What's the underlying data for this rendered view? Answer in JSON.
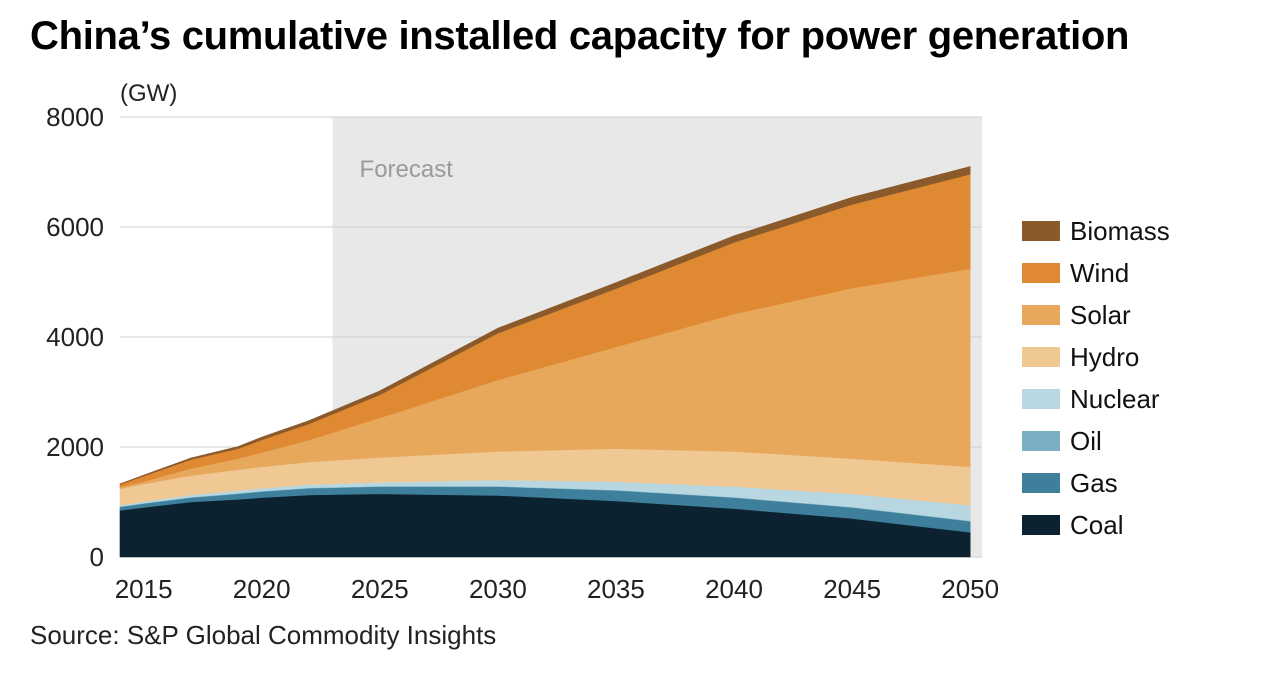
{
  "title": "China’s cumulative installed capacity for power generation",
  "source": "Source: S&P Global Commodity Insights",
  "chart_data": {
    "type": "area",
    "stacked": true,
    "title": "China’s cumulative installed capacity for power generation",
    "ylabel": "(GW)",
    "xlabel": "",
    "xlim": [
      2014,
      2050.5
    ],
    "ylim": [
      0,
      8000
    ],
    "yticks": [
      0,
      2000,
      4000,
      6000,
      8000
    ],
    "xticks": [
      2015,
      2020,
      2025,
      2030,
      2035,
      2040,
      2045,
      2050
    ],
    "grid": "horizontal",
    "legend_position": "right",
    "annotation": {
      "text": "Forecast",
      "from": 2023,
      "to": 2050.5
    },
    "x": [
      2014,
      2015,
      2017,
      2019,
      2020,
      2022,
      2025,
      2030,
      2035,
      2040,
      2045,
      2050
    ],
    "series": [
      {
        "name": "Coal",
        "color": "#0d2230",
        "values": [
          850,
          900,
          1000,
          1050,
          1080,
          1130,
          1150,
          1120,
          1020,
          880,
          700,
          450
        ]
      },
      {
        "name": "Gas",
        "color": "#3e7f9b",
        "values": [
          60,
          70,
          80,
          100,
          110,
          120,
          130,
          160,
          190,
          200,
          200,
          200
        ]
      },
      {
        "name": "Oil",
        "color": "#7bb0c4",
        "values": [
          10,
          10,
          10,
          10,
          10,
          10,
          10,
          10,
          10,
          10,
          10,
          10
        ]
      },
      {
        "name": "Nuclear",
        "color": "#b9d7e0",
        "values": [
          20,
          30,
          40,
          50,
          50,
          60,
          70,
          110,
          150,
          190,
          240,
          280
        ]
      },
      {
        "name": "Hydro",
        "color": "#f0c894",
        "values": [
          300,
          320,
          350,
          380,
          390,
          410,
          450,
          520,
          600,
          640,
          640,
          700
        ]
      },
      {
        "name": "Solar",
        "color": "#e7a85c",
        "values": [
          30,
          40,
          130,
          200,
          260,
          400,
          720,
          1300,
          1850,
          2500,
          3100,
          3600
        ]
      },
      {
        "name": "Wind",
        "color": "#df8a32",
        "values": [
          50,
          100,
          160,
          180,
          230,
          290,
          420,
          850,
          1060,
          1300,
          1520,
          1720
        ]
      },
      {
        "name": "Biomass",
        "color": "#8b5a2b",
        "values": [
          10,
          20,
          30,
          40,
          50,
          60,
          70,
          90,
          110,
          120,
          130,
          140
        ]
      }
    ],
    "background": "#e8e8e8",
    "grid_color": "#cfcfcf"
  },
  "legend": [
    {
      "label": "Biomass",
      "color": "#8b5a2b"
    },
    {
      "label": "Wind",
      "color": "#df8a32"
    },
    {
      "label": "Solar",
      "color": "#e7a85c"
    },
    {
      "label": "Hydro",
      "color": "#f0c894"
    },
    {
      "label": "Nuclear",
      "color": "#b9d7e0"
    },
    {
      "label": "Oil",
      "color": "#7bb0c4"
    },
    {
      "label": "Gas",
      "color": "#3e7f9b"
    },
    {
      "label": "Coal",
      "color": "#0d2230"
    }
  ]
}
